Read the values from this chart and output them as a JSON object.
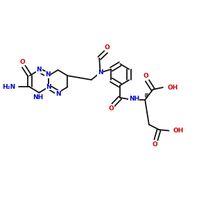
{
  "bg_color": "#ffffff",
  "bond_color": "#111111",
  "blue_color": "#0000cc",
  "red_color": "#cc0000",
  "bond_lw": 1.3,
  "font_size": 6.5,
  "fig_size": 3.0,
  "dpi": 100,
  "xlim": [
    0,
    10
  ],
  "ylim": [
    0,
    10
  ]
}
